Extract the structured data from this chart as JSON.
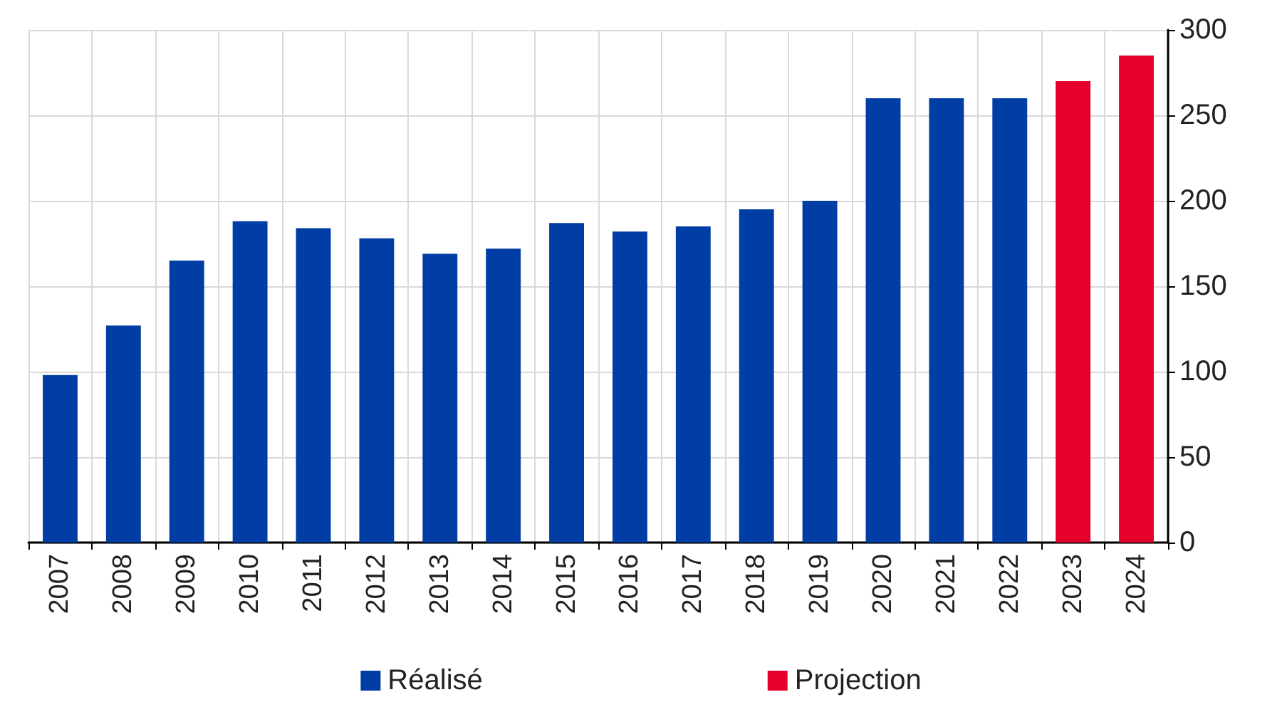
{
  "chart_data": {
    "type": "bar",
    "stacked": true,
    "grid": true,
    "legend": "bottom",
    "categories": [
      "2007",
      "2008",
      "2009",
      "2010",
      "2011",
      "2012",
      "2013",
      "2014",
      "2015",
      "2016",
      "2017",
      "2018",
      "2019",
      "2020",
      "2021",
      "2022",
      "2023",
      "2024"
    ],
    "series": [
      {
        "name": "Réalisé",
        "color": "#003da5",
        "values": [
          98,
          127,
          165,
          188,
          184,
          178,
          169,
          172,
          187,
          182,
          185,
          195,
          200,
          260,
          260,
          260,
          null,
          null
        ]
      },
      {
        "name": "Projection",
        "color": "#e4002b",
        "values": [
          null,
          null,
          null,
          null,
          null,
          null,
          null,
          null,
          null,
          null,
          null,
          null,
          null,
          null,
          null,
          null,
          270,
          285
        ]
      }
    ],
    "ylim": [
      0,
      300
    ],
    "yticks": [
      0,
      50,
      100,
      150,
      200,
      250,
      300
    ]
  }
}
